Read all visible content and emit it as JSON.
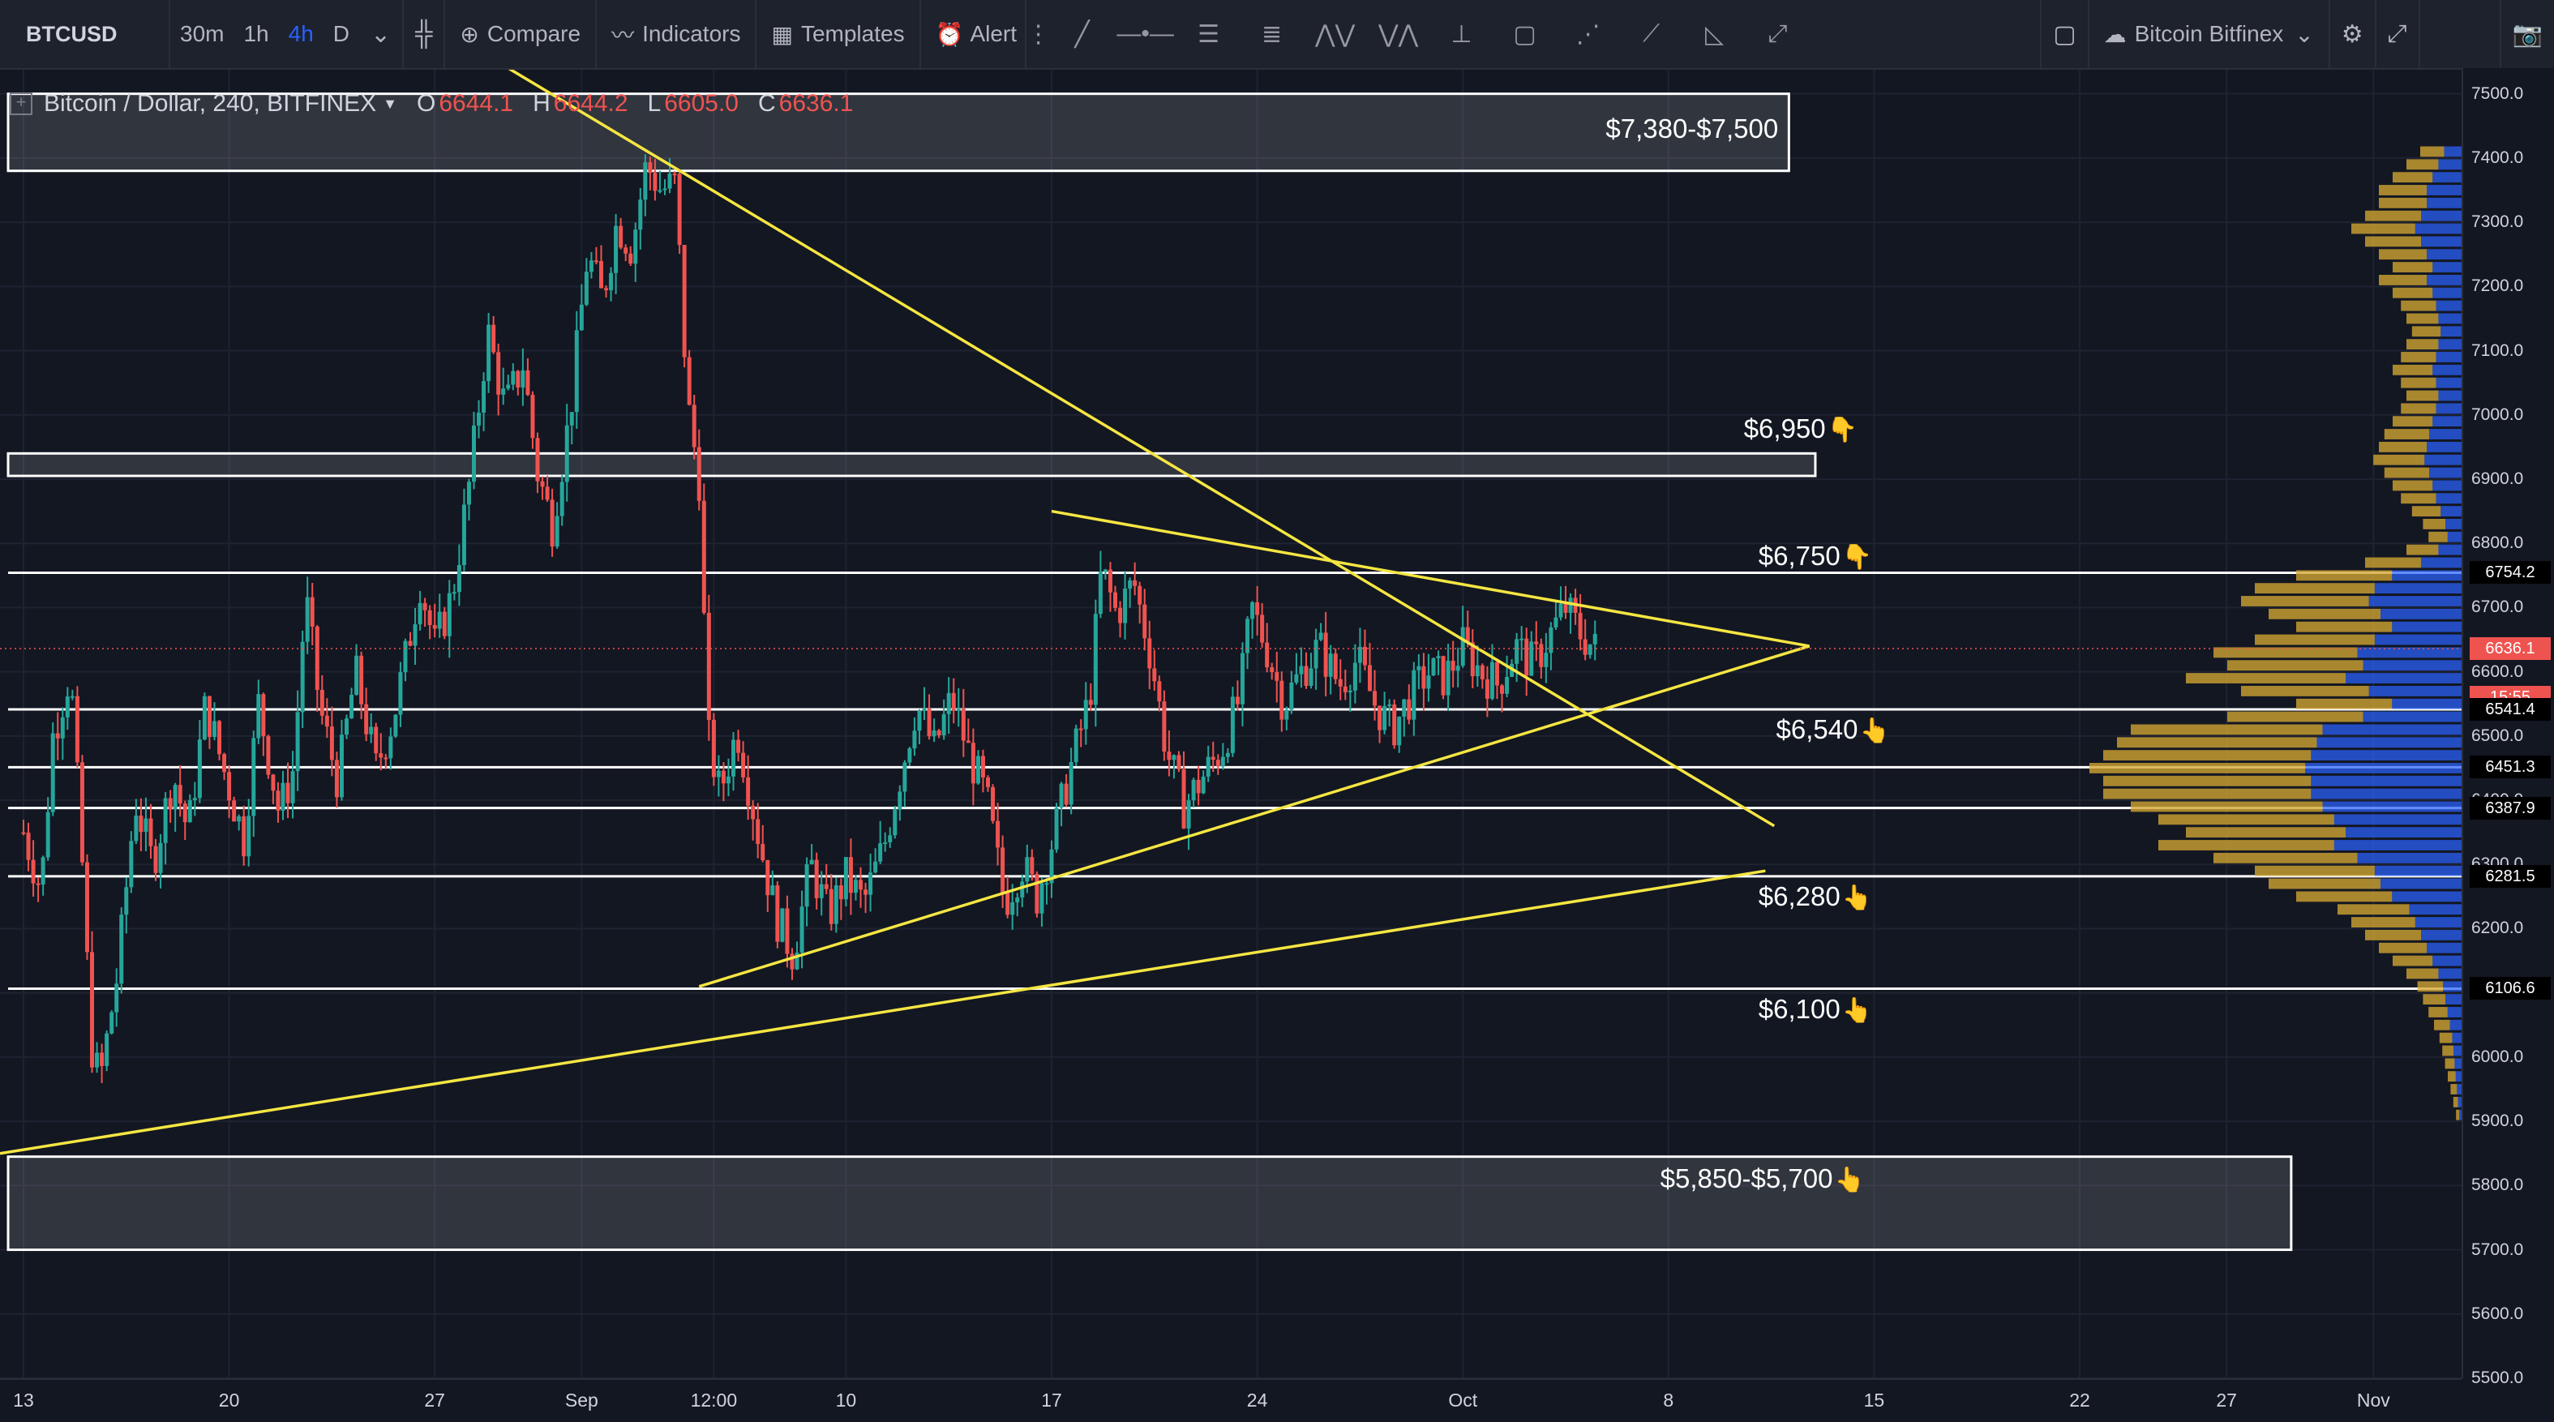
{
  "toolbar": {
    "symbol": "BTCUSD",
    "intervals": [
      "30m",
      "1h",
      "4h",
      "D"
    ],
    "active_interval": "4h",
    "compare_label": "Compare",
    "indicators_label": "Indicators",
    "templates_label": "Templates",
    "alert_label": "Alert",
    "exchange_label": "Bitcoin Bitfinex",
    "drawing_tools": [
      "trend-line-icon",
      "horizontal-line-icon",
      "parallel-channel-icon",
      "fib-retracement-icon",
      "pattern-icon",
      "elliott-wave-icon",
      "projection-icon",
      "rectangle-icon",
      "abcd-pattern-icon",
      "brush-icon",
      "forecast-icon",
      "path-icon"
    ]
  },
  "legend": {
    "title": "Bitcoin / Dollar, 240, BITFINEX",
    "open_label": "O",
    "open": "6644.1",
    "high_label": "H",
    "high": "6644.2",
    "low_label": "L",
    "low": "6605.0",
    "close_label": "C",
    "close": "6636.1"
  },
  "price_axis": {
    "ticks": [
      "7500.0",
      "7400.0",
      "7300.0",
      "7200.0",
      "7100.0",
      "7000.0",
      "6900.0",
      "6800.0",
      "6700.0",
      "6600.0",
      "6500.0",
      "6400.0",
      "6300.0",
      "6200.0",
      "6100.0",
      "6000.0",
      "5900.0",
      "5800.0",
      "5700.0",
      "5600.0",
      "5500.0"
    ],
    "tags": [
      {
        "label": "6754.2",
        "value": 6754.2,
        "style": "dark"
      },
      {
        "label": "6636.1",
        "value": 6636.1,
        "style": "red"
      },
      {
        "label": "15:55",
        "value": 6560,
        "style": "timer"
      },
      {
        "label": "6541.4",
        "value": 6541.4,
        "style": "dark"
      },
      {
        "label": "6451.3",
        "value": 6451.3,
        "style": "dark"
      },
      {
        "label": "6387.9",
        "value": 6387.9,
        "style": "dark"
      },
      {
        "label": "6281.5",
        "value": 6281.5,
        "style": "dark"
      },
      {
        "label": "6106.6",
        "value": 6106.6,
        "style": "dark"
      }
    ]
  },
  "time_axis": {
    "ticks": [
      {
        "label": "13",
        "day": 0
      },
      {
        "label": "20",
        "day": 7
      },
      {
        "label": "27",
        "day": 14
      },
      {
        "label": "Sep",
        "day": 19
      },
      {
        "label": "12:00",
        "day": 23.5
      },
      {
        "label": "10",
        "day": 28
      },
      {
        "label": "17",
        "day": 35
      },
      {
        "label": "24",
        "day": 42
      },
      {
        "label": "Oct",
        "day": 49
      },
      {
        "label": "8",
        "day": 56
      },
      {
        "label": "15",
        "day": 63
      },
      {
        "label": "22",
        "day": 70
      },
      {
        "label": "27",
        "day": 75
      },
      {
        "label": "Nov",
        "day": 80
      }
    ]
  },
  "annotations": [
    {
      "label": "$7,380-$7,500",
      "hand": "",
      "day": 56.8,
      "price": 7445
    },
    {
      "label": "$6,950",
      "hand": "👇",
      "day": 60.5,
      "price": 6978
    },
    {
      "label": "$6,750",
      "hand": "👇",
      "day": 61.0,
      "price": 6780
    },
    {
      "label": "$6,540",
      "hand": "👆",
      "day": 61.6,
      "price": 6510
    },
    {
      "label": "$6,280",
      "hand": "👆",
      "day": 61.0,
      "price": 6250
    },
    {
      "label": "$6,100",
      "hand": "👆",
      "day": 61.0,
      "price": 6075
    },
    {
      "label": "$5,850-$5,700",
      "hand": "👆",
      "day": 59.2,
      "price": 5810
    }
  ],
  "chart_data": {
    "type": "candlestick",
    "symbol": "BTCUSD",
    "interval": "240",
    "exchange": "BITFINEX",
    "ylim": [
      5500,
      7540
    ],
    "x_unit": "days since Aug 13",
    "xlim": [
      -0.8,
      83
    ],
    "colors": {
      "up": "#26a69a",
      "down": "#ef5350",
      "drawing": "#f5e642",
      "level": "#ffffff"
    },
    "price_path": [
      [
        0,
        6350
      ],
      [
        0.6,
        6260
      ],
      [
        1.0,
        6500
      ],
      [
        1.6,
        6600
      ],
      [
        2.0,
        6300
      ],
      [
        2.3,
        6020
      ],
      [
        2.6,
        5960
      ],
      [
        3.2,
        6130
      ],
      [
        3.8,
        6400
      ],
      [
        4.4,
        6300
      ],
      [
        5.1,
        6440
      ],
      [
        5.6,
        6350
      ],
      [
        6.2,
        6550
      ],
      [
        6.8,
        6450
      ],
      [
        7.5,
        6340
      ],
      [
        8.0,
        6550
      ],
      [
        8.7,
        6380
      ],
      [
        9.2,
        6450
      ],
      [
        9.6,
        6720
      ],
      [
        10.1,
        6540
      ],
      [
        10.7,
        6430
      ],
      [
        11.3,
        6600
      ],
      [
        12.0,
        6450
      ],
      [
        12.6,
        6530
      ],
      [
        13.0,
        6620
      ],
      [
        13.5,
        6740
      ],
      [
        14.0,
        6640
      ],
      [
        14.6,
        6720
      ],
      [
        15.2,
        6900
      ],
      [
        15.8,
        7130
      ],
      [
        16.4,
        7010
      ],
      [
        17.0,
        7080
      ],
      [
        17.5,
        6910
      ],
      [
        18.0,
        6830
      ],
      [
        18.6,
        7000
      ],
      [
        19.2,
        7250
      ],
      [
        19.7,
        7180
      ],
      [
        20.2,
        7300
      ],
      [
        20.7,
        7260
      ],
      [
        21.2,
        7390
      ],
      [
        21.7,
        7350
      ],
      [
        22.2,
        7360
      ],
      [
        22.6,
        7020
      ],
      [
        23.0,
        6900
      ],
      [
        23.3,
        6500
      ],
      [
        23.7,
        6410
      ],
      [
        24.3,
        6510
      ],
      [
        25.0,
        6350
      ],
      [
        25.6,
        6220
      ],
      [
        26.2,
        6160
      ],
      [
        26.8,
        6300
      ],
      [
        27.4,
        6220
      ],
      [
        28.0,
        6280
      ],
      [
        28.6,
        6240
      ],
      [
        29.3,
        6330
      ],
      [
        29.8,
        6430
      ],
      [
        30.4,
        6550
      ],
      [
        31.0,
        6480
      ],
      [
        31.6,
        6560
      ],
      [
        32.2,
        6470
      ],
      [
        32.8,
        6400
      ],
      [
        33.4,
        6240
      ],
      [
        34.0,
        6300
      ],
      [
        34.5,
        6250
      ],
      [
        35.1,
        6350
      ],
      [
        35.7,
        6460
      ],
      [
        36.3,
        6560
      ],
      [
        36.7,
        6760
      ],
      [
        37.2,
        6690
      ],
      [
        37.8,
        6740
      ],
      [
        38.4,
        6620
      ],
      [
        38.9,
        6480
      ],
      [
        39.5,
        6390
      ],
      [
        40.2,
        6440
      ],
      [
        40.8,
        6480
      ],
      [
        41.4,
        6560
      ],
      [
        41.8,
        6700
      ],
      [
        42.3,
        6640
      ],
      [
        42.9,
        6550
      ],
      [
        43.5,
        6600
      ],
      [
        44.1,
        6640
      ],
      [
        44.8,
        6580
      ],
      [
        45.4,
        6620
      ],
      [
        46.0,
        6550
      ],
      [
        46.6,
        6510
      ],
      [
        47.2,
        6560
      ],
      [
        47.8,
        6600
      ],
      [
        48.4,
        6590
      ],
      [
        49.0,
        6640
      ],
      [
        49.6,
        6600
      ],
      [
        50.2,
        6580
      ],
      [
        50.8,
        6640
      ],
      [
        51.4,
        6610
      ],
      [
        52.0,
        6660
      ],
      [
        52.5,
        6700
      ],
      [
        53.0,
        6660
      ],
      [
        53.5,
        6636
      ]
    ],
    "trendlines": [
      {
        "name": "descending-resistance",
        "from": [
          16.5,
          7540
        ],
        "to": [
          59.6,
          6360
        ]
      },
      {
        "name": "lower-triangle-resistance",
        "from": [
          35.0,
          6850
        ],
        "to": [
          60.8,
          6640
        ]
      },
      {
        "name": "triangle-support",
        "from": [
          23.0,
          6110
        ],
        "to": [
          60.8,
          6640
        ]
      },
      {
        "name": "long-term-support",
        "from": [
          -0.8,
          5850
        ],
        "to": [
          59.3,
          6290
        ]
      }
    ],
    "levels": [
      6754.2,
      6541.4,
      6451.3,
      6387.9,
      6281.5,
      6106.6
    ],
    "zones": [
      {
        "label": "$7,380-$7,500",
        "from": 7380,
        "to": 7500,
        "x_end_day": 60.1
      },
      {
        "label": "$6,950",
        "from": 6905,
        "to": 6940,
        "x_end_day": 61.0
      },
      {
        "label": "$5,850-$5,700",
        "from": 5700,
        "to": 5845,
        "x_end_day": 77.2
      }
    ],
    "volume_profile": {
      "price_step": 20,
      "buckets": [
        [
          7400,
          0.15
        ],
        [
          7380,
          0.2
        ],
        [
          7360,
          0.25
        ],
        [
          7340,
          0.3
        ],
        [
          7320,
          0.3
        ],
        [
          7300,
          0.35
        ],
        [
          7280,
          0.4
        ],
        [
          7260,
          0.35
        ],
        [
          7240,
          0.3
        ],
        [
          7220,
          0.25
        ],
        [
          7200,
          0.3
        ],
        [
          7180,
          0.25
        ],
        [
          7160,
          0.22
        ],
        [
          7140,
          0.2
        ],
        [
          7120,
          0.18
        ],
        [
          7100,
          0.2
        ],
        [
          7080,
          0.22
        ],
        [
          7060,
          0.25
        ],
        [
          7040,
          0.22
        ],
        [
          7020,
          0.2
        ],
        [
          7000,
          0.22
        ],
        [
          6980,
          0.25
        ],
        [
          6960,
          0.28
        ],
        [
          6940,
          0.3
        ],
        [
          6920,
          0.32
        ],
        [
          6900,
          0.28
        ],
        [
          6880,
          0.25
        ],
        [
          6860,
          0.22
        ],
        [
          6840,
          0.18
        ],
        [
          6820,
          0.14
        ],
        [
          6800,
          0.12
        ],
        [
          6780,
          0.2
        ],
        [
          6760,
          0.35
        ],
        [
          6740,
          0.6
        ],
        [
          6720,
          0.75
        ],
        [
          6700,
          0.8
        ],
        [
          6680,
          0.7
        ],
        [
          6660,
          0.6
        ],
        [
          6640,
          0.75
        ],
        [
          6620,
          0.9
        ],
        [
          6600,
          0.85
        ],
        [
          6580,
          1.0
        ],
        [
          6560,
          0.8
        ],
        [
          6540,
          0.6
        ],
        [
          6520,
          0.85
        ],
        [
          6500,
          1.2
        ],
        [
          6480,
          1.25
        ],
        [
          6460,
          1.3
        ],
        [
          6440,
          1.35
        ],
        [
          6420,
          1.3
        ],
        [
          6400,
          1.3
        ],
        [
          6380,
          1.2
        ],
        [
          6360,
          1.1
        ],
        [
          6340,
          1.0
        ],
        [
          6320,
          1.1
        ],
        [
          6300,
          0.9
        ],
        [
          6280,
          0.75
        ],
        [
          6260,
          0.7
        ],
        [
          6240,
          0.6
        ],
        [
          6220,
          0.45
        ],
        [
          6200,
          0.4
        ],
        [
          6180,
          0.35
        ],
        [
          6160,
          0.3
        ],
        [
          6140,
          0.25
        ],
        [
          6120,
          0.2
        ],
        [
          6100,
          0.16
        ],
        [
          6080,
          0.14
        ],
        [
          6060,
          0.12
        ],
        [
          6040,
          0.1
        ],
        [
          6020,
          0.08
        ],
        [
          6000,
          0.07
        ],
        [
          5980,
          0.06
        ],
        [
          5960,
          0.05
        ],
        [
          5940,
          0.04
        ],
        [
          5920,
          0.03
        ],
        [
          5900,
          0.02
        ]
      ]
    }
  }
}
